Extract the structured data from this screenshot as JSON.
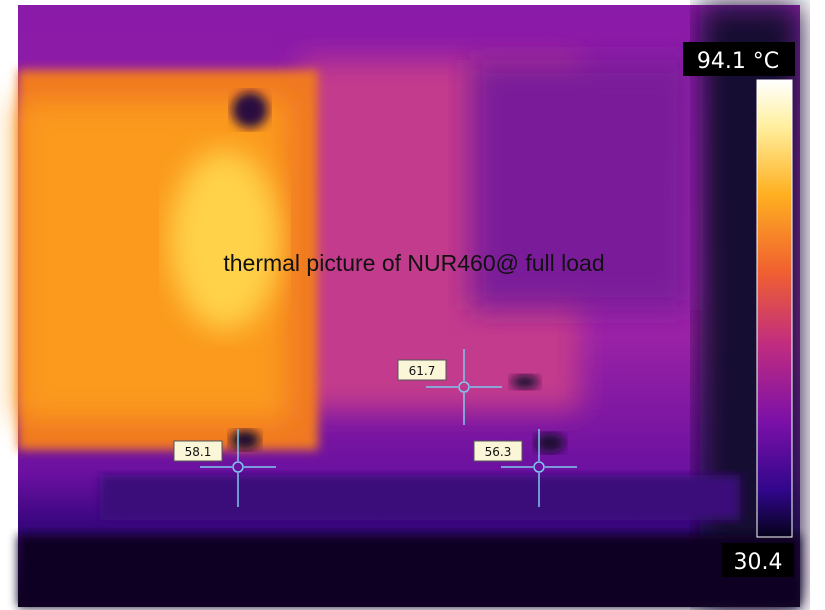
{
  "caption": "thermal picture of NUR460@ full load",
  "scale": {
    "max": "94.1 °C",
    "min": "30.4"
  },
  "spots": [
    {
      "label": "61.7"
    },
    {
      "label": "58.1"
    },
    {
      "label": "56.3"
    }
  ]
}
